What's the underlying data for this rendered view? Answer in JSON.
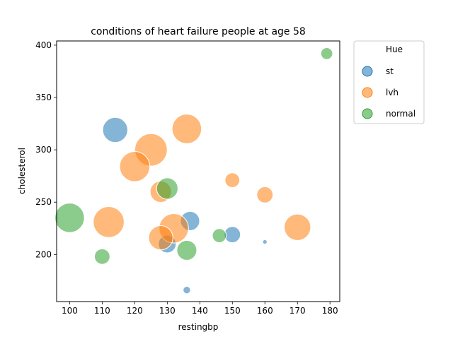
{
  "chart_data": {
    "type": "scatter",
    "title": "conditions of heart failure people at age 58",
    "xlabel": "restingbp",
    "ylabel": "cholesterol",
    "xlim": [
      96,
      183
    ],
    "ylim": [
      155,
      404
    ],
    "xticks": [
      "100",
      "110",
      "120",
      "130",
      "140",
      "150",
      "160",
      "170",
      "180"
    ],
    "yticks": [
      "200",
      "250",
      "300",
      "350",
      "400"
    ],
    "grid": false,
    "legend": {
      "title": "Hue",
      "placement": "outside-upper-right",
      "entries": [
        "st",
        "lvh",
        "normal"
      ]
    },
    "marker_size": "varies by point (size encoding not labeled)",
    "series": [
      {
        "name": "st",
        "color": "#1f77b4",
        "points": [
          {
            "x": 114,
            "y": 319,
            "size": 3.4
          },
          {
            "x": 137,
            "y": 232,
            "size": 2.6
          },
          {
            "x": 150,
            "y": 219,
            "size": 2.2
          },
          {
            "x": 130,
            "y": 210,
            "size": 2.4
          },
          {
            "x": 160,
            "y": 212,
            "size": 0.6
          },
          {
            "x": 136,
            "y": 166,
            "size": 1.0
          }
        ]
      },
      {
        "name": "lvh",
        "color": "#ff7f0e",
        "points": [
          {
            "x": 136,
            "y": 320,
            "size": 4.0
          },
          {
            "x": 125,
            "y": 300,
            "size": 4.4
          },
          {
            "x": 120,
            "y": 284,
            "size": 4.1
          },
          {
            "x": 128,
            "y": 260,
            "size": 2.9
          },
          {
            "x": 150,
            "y": 271,
            "size": 2.0
          },
          {
            "x": 160,
            "y": 257,
            "size": 2.2
          },
          {
            "x": 112,
            "y": 231,
            "size": 4.2
          },
          {
            "x": 132,
            "y": 225,
            "size": 4.0
          },
          {
            "x": 128,
            "y": 216,
            "size": 3.3
          },
          {
            "x": 170,
            "y": 226,
            "size": 3.6
          }
        ]
      },
      {
        "name": "normal",
        "color": "#2ca02c",
        "points": [
          {
            "x": 179,
            "y": 392,
            "size": 1.6
          },
          {
            "x": 130,
            "y": 263,
            "size": 2.9
          },
          {
            "x": 100,
            "y": 235,
            "size": 4.0
          },
          {
            "x": 146,
            "y": 218,
            "size": 1.9
          },
          {
            "x": 136,
            "y": 204,
            "size": 2.7
          },
          {
            "x": 110,
            "y": 198,
            "size": 2.1
          }
        ]
      }
    ]
  }
}
